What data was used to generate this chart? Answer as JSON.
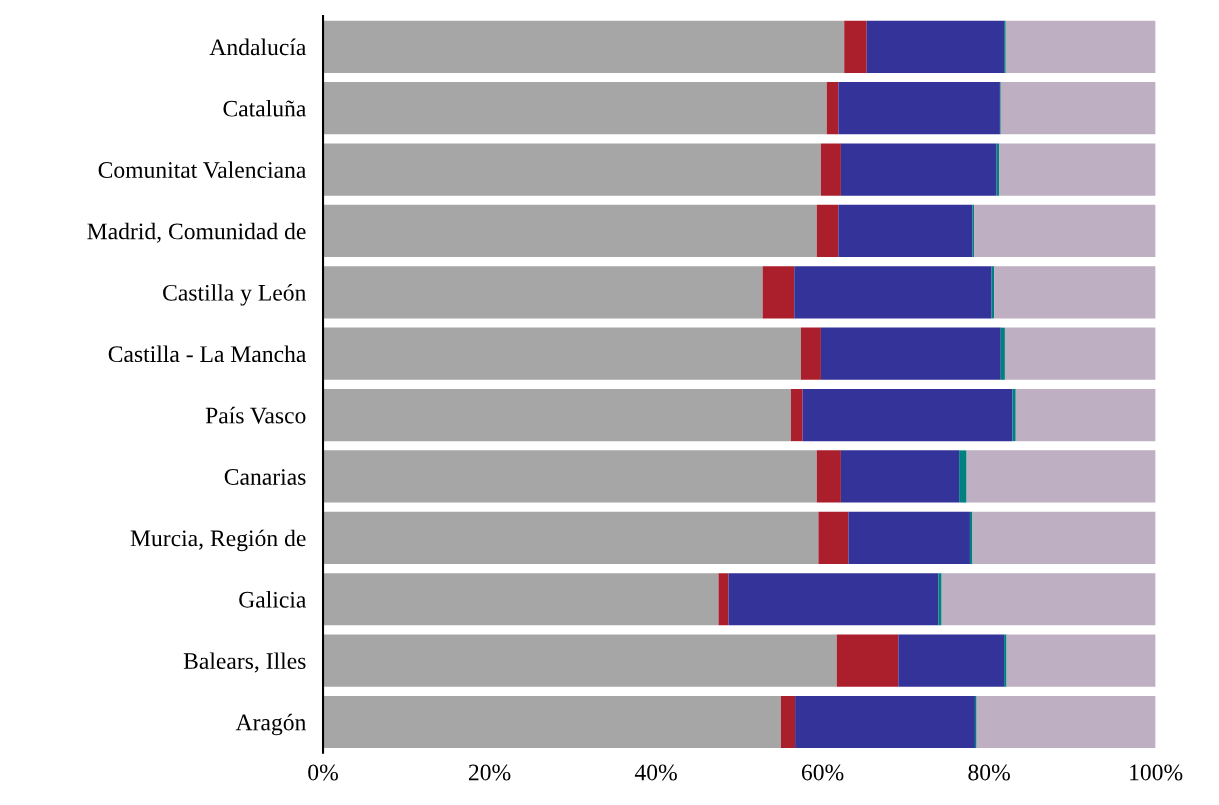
{
  "chart_data": {
    "type": "bar",
    "orientation": "horizontal",
    "stacked": true,
    "categories": [
      "Andalucía",
      "Cataluña",
      "Comunitat Valenciana",
      "Madrid, Comunidad de",
      "Castilla y León",
      "Castilla - La Mancha",
      "País Vasco",
      "Canarias",
      "Murcia, Región de",
      "Galicia",
      "Balears, Illes",
      "Aragón"
    ],
    "series": [
      {
        "color": "#a6a6a6",
        "values": [
          62.6,
          60.5,
          59.8,
          59.3,
          52.8,
          57.4,
          56.2,
          59.3,
          59.5,
          47.5,
          61.7,
          55.0
        ]
      },
      {
        "color": "#ab1f2d",
        "values": [
          2.7,
          1.4,
          2.4,
          2.6,
          3.8,
          2.4,
          1.4,
          2.9,
          3.6,
          1.2,
          7.4,
          1.7
        ]
      },
      {
        "color": "#333399",
        "values": [
          16.5,
          19.4,
          18.7,
          16.1,
          23.7,
          21.6,
          25.2,
          14.2,
          14.6,
          25.2,
          12.7,
          21.6
        ]
      },
      {
        "color": "#008080",
        "values": [
          0.2,
          0.1,
          0.3,
          0.2,
          0.3,
          0.5,
          0.4,
          0.9,
          0.3,
          0.4,
          0.3,
          0.2
        ]
      },
      {
        "color": "#bfafc3",
        "values": [
          18.0,
          18.6,
          18.8,
          21.8,
          19.4,
          18.1,
          16.8,
          22.7,
          22.0,
          25.7,
          17.9,
          21.5
        ]
      }
    ],
    "xlim": [
      0,
      100
    ],
    "xticks": [
      {
        "value": 0,
        "label": "0%"
      },
      {
        "value": 20,
        "label": "20%"
      },
      {
        "value": 40,
        "label": "40%"
      },
      {
        "value": 60,
        "label": "60%"
      },
      {
        "value": 80,
        "label": "80%"
      },
      {
        "value": 100,
        "label": "100%"
      }
    ],
    "grid": false,
    "legend": false
  }
}
